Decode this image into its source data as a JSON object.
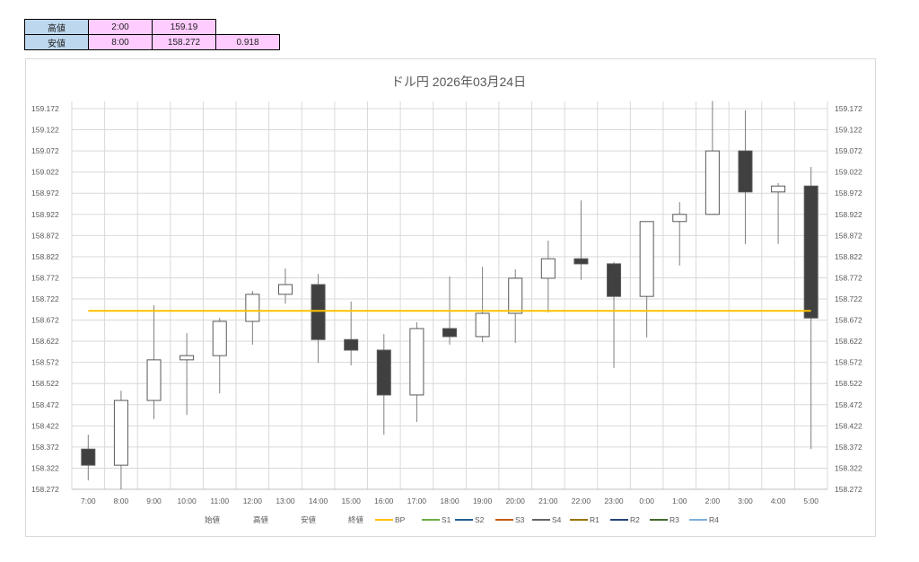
{
  "summary_table": {
    "rows": [
      {
        "label": "高値",
        "time": "2:00",
        "value": "159.19",
        "extra": ""
      },
      {
        "label": "安値",
        "time": "8:00",
        "value": "158.272",
        "extra": "0.918"
      }
    ]
  },
  "chart_data": {
    "type": "candlestick",
    "title": "ドル円  2026年03月24日",
    "categories": [
      "7:00",
      "8:00",
      "9:00",
      "10:00",
      "11:00",
      "12:00",
      "13:00",
      "14:00",
      "15:00",
      "16:00",
      "17:00",
      "18:00",
      "19:00",
      "20:00",
      "21:00",
      "22:00",
      "23:00",
      "0:00",
      "1:00",
      "2:00",
      "3:00",
      "4:00",
      "5:00"
    ],
    "open": [
      158.367,
      158.329,
      158.482,
      158.578,
      158.588,
      158.669,
      158.733,
      158.756,
      158.626,
      158.601,
      158.495,
      158.652,
      158.633,
      158.688,
      158.771,
      158.817,
      158.805,
      158.728,
      158.905,
      158.922,
      159.072,
      158.975,
      158.989
    ],
    "high": [
      158.401,
      158.505,
      158.707,
      158.641,
      158.677,
      158.741,
      158.794,
      158.781,
      158.716,
      158.639,
      158.667,
      158.775,
      158.798,
      158.792,
      158.86,
      158.955,
      158.809,
      158.905,
      158.951,
      159.19,
      159.168,
      158.996,
      159.034
    ],
    "low": [
      158.293,
      158.272,
      158.438,
      158.448,
      158.499,
      158.614,
      158.711,
      158.571,
      158.565,
      158.401,
      158.431,
      158.614,
      158.62,
      158.618,
      158.69,
      158.767,
      158.559,
      158.631,
      158.801,
      158.922,
      158.852,
      158.852,
      158.367
    ],
    "close": [
      158.329,
      158.482,
      158.578,
      158.588,
      158.669,
      158.733,
      158.756,
      158.626,
      158.601,
      158.495,
      158.652,
      158.633,
      158.688,
      158.771,
      158.817,
      158.805,
      158.728,
      158.905,
      158.922,
      159.072,
      158.975,
      158.989,
      158.677
    ],
    "bp": 158.694,
    "ylim": [
      158.272,
      159.172
    ],
    "ytick_labels": [
      "158.272",
      "158.322",
      "158.372",
      "158.422",
      "158.472",
      "158.522",
      "158.572",
      "158.622",
      "158.672",
      "158.722",
      "158.772",
      "158.822",
      "158.872",
      "158.922",
      "158.972",
      "159.022",
      "159.072",
      "159.122",
      "159.172"
    ],
    "grid": true,
    "legend_placement": "bottom",
    "legend": [
      {
        "name": "始値",
        "color": ""
      },
      {
        "name": "高値",
        "color": ""
      },
      {
        "name": "安値",
        "color": ""
      },
      {
        "name": "終値",
        "color": ""
      },
      {
        "name": "BP",
        "color": "#ffc000"
      },
      {
        "name": "S1",
        "color": "#70ad47"
      },
      {
        "name": "S2",
        "color": "#255e91"
      },
      {
        "name": "S3",
        "color": "#c55a11"
      },
      {
        "name": "S4",
        "color": "#636363"
      },
      {
        "name": "R1",
        "color": "#997300"
      },
      {
        "name": "R2",
        "color": "#264478"
      },
      {
        "name": "R3",
        "color": "#43682b"
      },
      {
        "name": "R4",
        "color": "#7cafdd"
      }
    ],
    "colors": {
      "up_fill": "#ffffff",
      "down_fill": "#404040",
      "wick": "#7f7f7f",
      "grid": "#d9d9d9"
    }
  }
}
